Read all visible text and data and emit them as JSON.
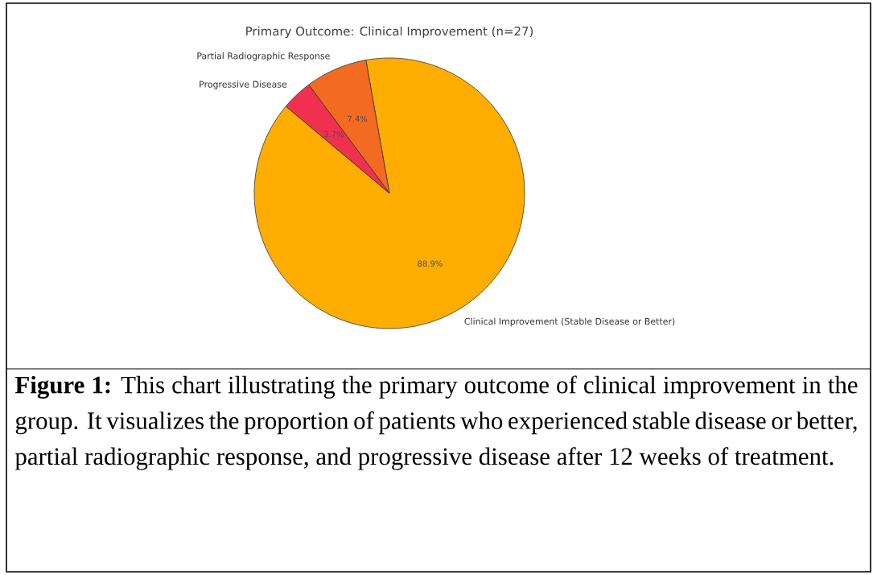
{
  "chart_data": {
    "type": "pie",
    "title": "Primary Outcome: Clinical Improvement (n=27)",
    "categories": [
      "Clinical Improvement (Stable Disease or Better)",
      "Partial Radiographic Response",
      "Progressive Disease"
    ],
    "values": [
      88.9,
      7.4,
      3.7
    ],
    "colors": [
      "#ffad01",
      "#f26b21",
      "#f0304f"
    ],
    "value_labels": [
      "88.9%",
      "7.4%",
      "3.7%"
    ],
    "annotations": [
      "**Figure 1:** This chart illustrating the primary outcome of clinical improvement in the group. It visualizes the proportion of patients who experienced stable disease or better, partial radiographic response, and progressive disease after 12 weeks of treatment."
    ]
  }
}
